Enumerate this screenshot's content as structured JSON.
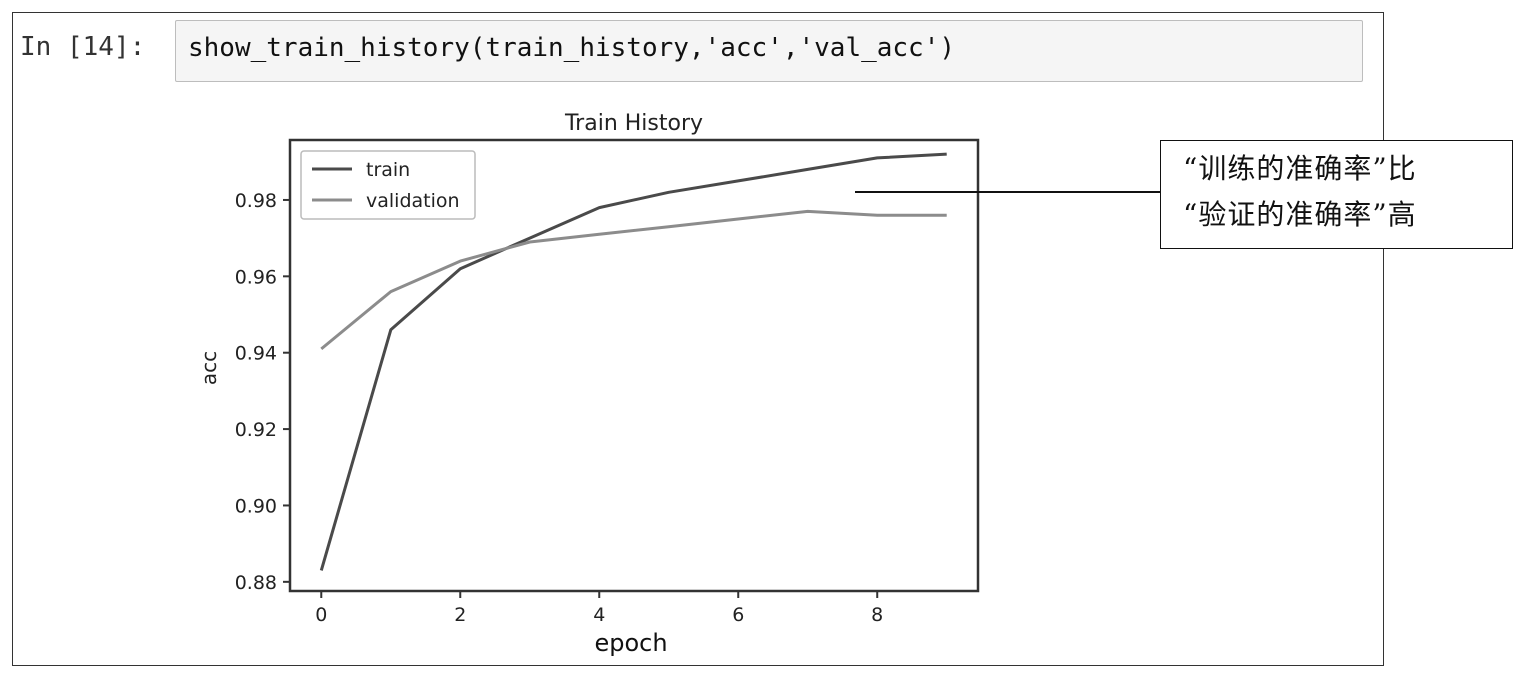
{
  "cell": {
    "prompt": "In [14]:",
    "code": "show_train_history(train_history,'acc','val_acc')"
  },
  "chart_data": {
    "type": "line",
    "title": "Train History",
    "xlabel": "epoch",
    "ylabel": "acc",
    "x": [
      0,
      1,
      2,
      3,
      4,
      5,
      6,
      7,
      8,
      9
    ],
    "xticks": [
      "0",
      "2",
      "4",
      "6",
      "8"
    ],
    "yticks": [
      "0.88",
      "0.90",
      "0.92",
      "0.94",
      "0.96",
      "0.98"
    ],
    "xlim": [
      -0.45,
      9.45
    ],
    "ylim": [
      0.8776,
      0.9957
    ],
    "grid": false,
    "legend": "top-left",
    "series": [
      {
        "name": "train",
        "color": "#4a4a4a",
        "values": [
          0.883,
          0.946,
          0.962,
          0.97,
          0.978,
          0.982,
          0.985,
          0.988,
          0.991,
          0.992
        ]
      },
      {
        "name": "validation",
        "color": "#8c8c8c",
        "values": [
          0.941,
          0.956,
          0.964,
          0.969,
          0.971,
          0.973,
          0.975,
          0.977,
          0.976,
          0.976
        ]
      }
    ]
  },
  "annotation": {
    "line1": "“训练的准确率”比",
    "line2": "“验证的准确率”高"
  }
}
